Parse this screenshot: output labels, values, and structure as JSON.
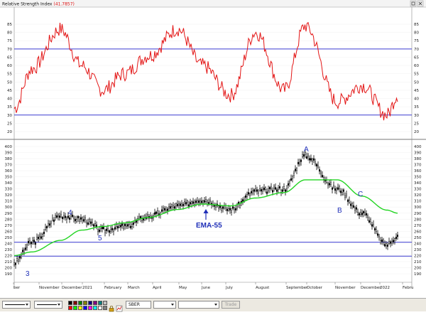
{
  "rsi_panel": {
    "title": "Relative Strength Index",
    "value_text": "(41.7857)",
    "y_ticks": [
      "85",
      "80",
      "75",
      "70",
      "65",
      "60",
      "55",
      "50",
      "45",
      "40",
      "35",
      "30",
      "25",
      "20"
    ],
    "levels": [
      70,
      30
    ]
  },
  "price_panel": {
    "y_ticks": [
      "400",
      "390",
      "380",
      "370",
      "360",
      "350",
      "340",
      "330",
      "320",
      "310",
      "300",
      "290",
      "280",
      "270",
      "260",
      "250",
      "240",
      "230",
      "220",
      "210",
      "200",
      "190"
    ],
    "levels": [
      242,
      219
    ]
  },
  "x_axis": {
    "labels": [
      "ber",
      "November",
      "December",
      "2021",
      "February",
      "March",
      "April",
      "May",
      "June",
      "July",
      "August",
      "September",
      "October",
      "November",
      "December",
      "2022",
      "Febru"
    ]
  },
  "annotations": {
    "wave_labels": [
      "2",
      "3",
      "4",
      "5",
      "A",
      "B",
      "C"
    ],
    "ema_label": "EMA-55"
  },
  "colors": {
    "rsi_line": "#e31515",
    "ema_line": "#22d422",
    "level_lines": "#3b3bd0",
    "annotation": "#1f2fb8",
    "candles": "#000000"
  },
  "toolbar": {
    "symbol_value": "SBER",
    "trade_label": "Trade",
    "palette": [
      "#000000",
      "#800000",
      "#008000",
      "#808000",
      "#000080",
      "#800080",
      "#008080",
      "#c0c0c0",
      "#ff0000",
      "#00ff00",
      "#ffff00",
      "#0000ff",
      "#ff00ff",
      "#00ffff",
      "#ffffff",
      "#808080"
    ]
  },
  "chart_data": [
    {
      "type": "line",
      "title": "Relative Strength Index (41.7857)",
      "ylim": [
        15,
        90
      ],
      "reference_lines": [
        70,
        30
      ],
      "x": [
        "Oct",
        "Nov",
        "Dec",
        "2021",
        "Feb",
        "Mar",
        "Apr",
        "May",
        "Jun",
        "Jul",
        "Aug",
        "Sep",
        "Oct",
        "Nov",
        "Dec",
        "2022",
        "Feb"
      ],
      "series": [
        {
          "values": [
            34,
            58,
            82,
            60,
            45,
            55,
            66,
            82,
            60,
            42,
            80,
            45,
            84,
            38,
            48,
            30,
            42
          ]
        }
      ]
    },
    {
      "type": "line",
      "ylim": [
        185,
        405
      ],
      "reference_lines": [
        242,
        219
      ],
      "x": [
        "Oct",
        "Nov",
        "Dec",
        "2021",
        "Feb",
        "Mar",
        "Apr",
        "May",
        "Jun",
        "Jul",
        "Aug",
        "Sep",
        "Oct",
        "Nov",
        "Dec",
        "2022",
        "Feb"
      ],
      "series": [
        {
          "values": [
            208,
            242,
            286,
            280,
            262,
            268,
            285,
            302,
            312,
            296,
            326,
            330,
            385,
            330,
            290,
            238,
            252
          ]
        },
        {
          "name": "EMA-55",
          "values": [
            220,
            226,
            245,
            262,
            268,
            274,
            283,
            296,
            305,
            302,
            315,
            324,
            345,
            345,
            318,
            295,
            290
          ]
        }
      ]
    }
  ]
}
